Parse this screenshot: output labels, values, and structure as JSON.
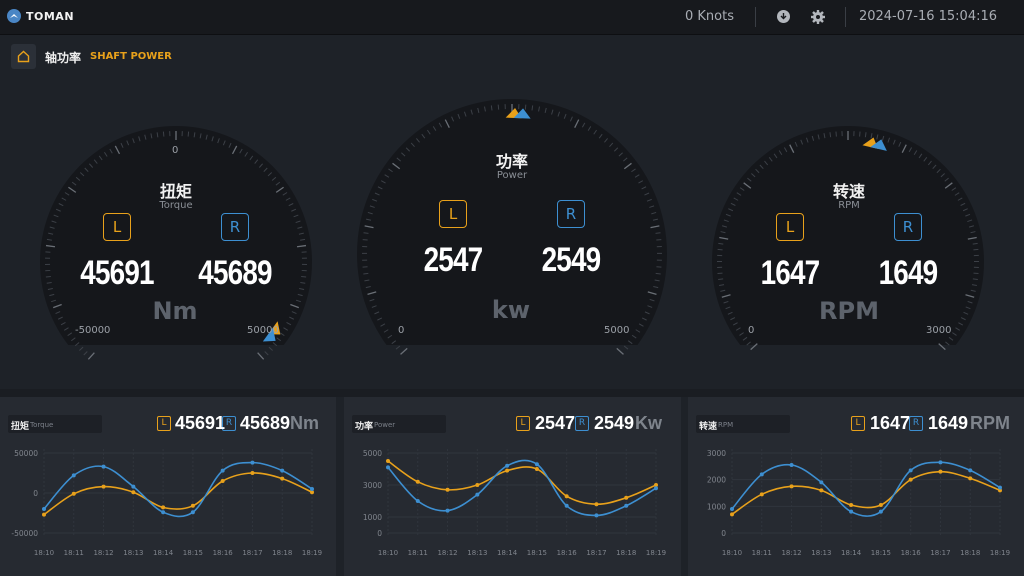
{
  "app": {
    "brand": "TOMAN"
  },
  "header": {
    "speed": "0 Knots",
    "datetime": "2024-07-16 15:04:16"
  },
  "page": {
    "title_cn": "轴功率",
    "title_en": "SHAFT POWER"
  },
  "gauges": [
    {
      "title": "扭矩",
      "subtitle": "Torque",
      "left_label": "L",
      "right_label": "R",
      "left_value": "45691",
      "right_value": "45689",
      "unit": "Nm",
      "min_label": "-50000",
      "max_label": "50000",
      "zero_label": "0",
      "pointer_fraction": 0.957
    },
    {
      "title": "功率",
      "subtitle": "Power",
      "left_label": "L",
      "right_label": "R",
      "left_value": "2547",
      "right_value": "2549",
      "unit": "kw",
      "min_label": "0",
      "max_label": "5000",
      "pointer_fraction": 0.509
    },
    {
      "title": "转速",
      "subtitle": "RPM",
      "left_label": "L",
      "right_label": "R",
      "left_value": "1647",
      "right_value": "1649",
      "unit": "RPM",
      "min_label": "0",
      "max_label": "3000",
      "pointer_fraction": 0.549
    }
  ],
  "colors": {
    "left": "#e8a11b",
    "right": "#3d8fd1",
    "background": "#1e2228",
    "panel": "#262a31"
  },
  "chart_data": [
    {
      "type": "line",
      "title": "扭矩",
      "subtitle": "Torque",
      "unit": "Nm",
      "left_label": "L",
      "right_label": "R",
      "left_value": "45691",
      "right_value": "45689",
      "x": [
        "18:10",
        "18:11",
        "18:12",
        "18:13",
        "18:14",
        "18:15",
        "18:16",
        "18:17",
        "18:18",
        "18:19"
      ],
      "yticks": [
        "50000",
        "0",
        "-50000"
      ],
      "ylim": [
        -50000,
        50000
      ],
      "series": [
        {
          "name": "L",
          "color": "#e8a11b",
          "values": [
            -27000,
            -1000,
            8000,
            1000,
            -18000,
            -16000,
            15000,
            25000,
            18000,
            1000
          ]
        },
        {
          "name": "R",
          "color": "#3d8fd1",
          "values": [
            -20000,
            22000,
            33000,
            8000,
            -24000,
            -24000,
            28000,
            38000,
            28000,
            5000
          ]
        }
      ]
    },
    {
      "type": "line",
      "title": "功率",
      "subtitle": "Power",
      "unit": "Kw",
      "left_label": "L",
      "right_label": "R",
      "left_value": "2547",
      "right_value": "2549",
      "x": [
        "18:10",
        "18:11",
        "18:12",
        "18:13",
        "18:14",
        "18:15",
        "18:16",
        "18:17",
        "18:18",
        "18:19"
      ],
      "yticks": [
        "5000",
        "3000",
        "1000",
        "0"
      ],
      "ylim": [
        0,
        5000
      ],
      "series": [
        {
          "name": "L",
          "color": "#e8a11b",
          "values": [
            4500,
            3200,
            2700,
            3000,
            3900,
            4000,
            2300,
            1800,
            2200,
            3000
          ]
        },
        {
          "name": "R",
          "color": "#3d8fd1",
          "values": [
            4100,
            2000,
            1400,
            2400,
            4200,
            4300,
            1700,
            1100,
            1700,
            2800
          ]
        }
      ]
    },
    {
      "type": "line",
      "title": "转速",
      "subtitle": "RPM",
      "unit": "RPM",
      "left_label": "L",
      "right_label": "R",
      "left_value": "1647",
      "right_value": "1649",
      "x": [
        "18:10",
        "18:11",
        "18:12",
        "18:13",
        "18:14",
        "18:15",
        "18:16",
        "18:17",
        "18:18",
        "18:19"
      ],
      "yticks": [
        "3000",
        "2000",
        "1000",
        "0"
      ],
      "ylim": [
        0,
        3000
      ],
      "series": [
        {
          "name": "L",
          "color": "#e8a11b",
          "values": [
            700,
            1450,
            1750,
            1600,
            1050,
            1050,
            2000,
            2300,
            2050,
            1600
          ]
        },
        {
          "name": "R",
          "color": "#3d8fd1",
          "values": [
            900,
            2200,
            2550,
            1900,
            800,
            800,
            2350,
            2650,
            2350,
            1700
          ]
        }
      ]
    }
  ]
}
